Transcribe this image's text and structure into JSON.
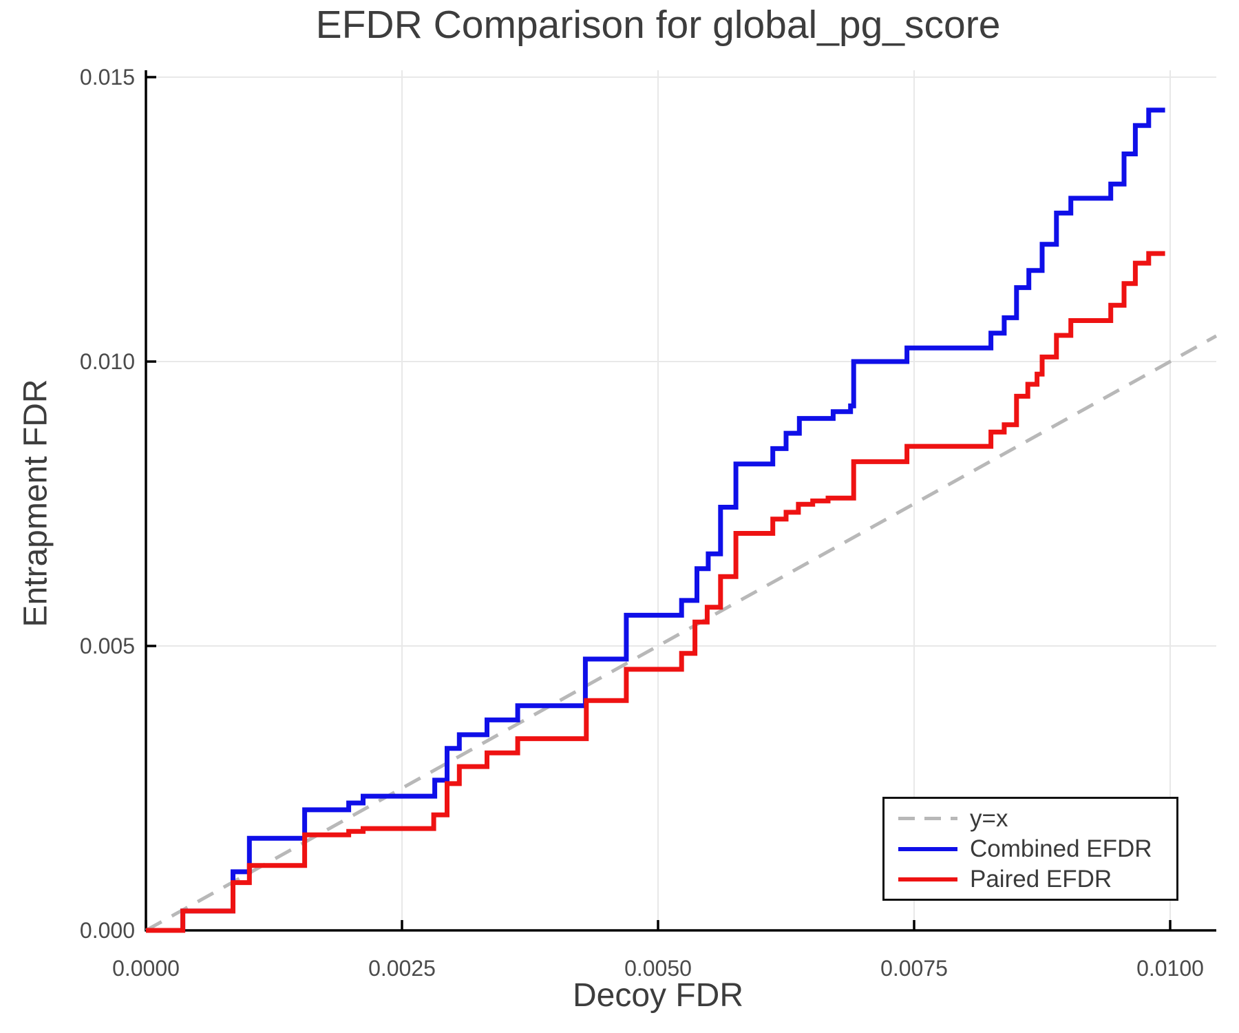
{
  "title": "EFDR Comparison for global_pg_score",
  "axes": {
    "xlabel": "Decoy FDR",
    "ylabel": "Entrapment FDR"
  },
  "legend": {
    "items": [
      {
        "label": "y=x",
        "color": "#b8b8b8",
        "dashed": true
      },
      {
        "label": "Combined EFDR",
        "color": "#0f0fe8",
        "dashed": false
      },
      {
        "label": "Paired EFDR",
        "color": "#ee1212",
        "dashed": false
      }
    ]
  },
  "colors": {
    "combined": "#0f0fe8",
    "paired": "#ee1212",
    "identity": "#b8b8b8",
    "grid": "#e8e8e8",
    "spine": "#000000",
    "tick_text": "#4a4a4a",
    "title_text": "#3d3d3d"
  },
  "chart_data": {
    "type": "line",
    "title": "EFDR Comparison for global_pg_score",
    "xlabel": "Decoy FDR",
    "ylabel": "Entrapment FDR",
    "xlim": [
      0,
      0.01045
    ],
    "ylim": [
      0,
      0.01512
    ],
    "grid": true,
    "legend_position": "lower right",
    "xticks": {
      "values": [
        0,
        0.0025,
        0.005,
        0.0075,
        0.01
      ],
      "labels": [
        "0.0000",
        "0.0025",
        "0.0050",
        "0.0075",
        "0.0100"
      ]
    },
    "yticks": {
      "values": [
        0,
        0.005,
        0.01,
        0.015
      ],
      "labels": [
        "0.000",
        "0.005",
        "0.010",
        "0.015"
      ]
    },
    "reference_line": {
      "name": "y=x",
      "from": [
        0,
        0
      ],
      "to": [
        0.01045,
        0.01045
      ],
      "style": "dashed"
    },
    "series": [
      {
        "name": "Combined EFDR",
        "step": "hv",
        "points": [
          [
            0.0,
            0.0
          ],
          [
            0.00036,
            0.00034
          ],
          [
            0.00085,
            0.00103
          ],
          [
            0.00101,
            0.00162
          ],
          [
            0.00155,
            0.00212
          ],
          [
            0.00198,
            0.00224
          ],
          [
            0.00212,
            0.00236
          ],
          [
            0.00282,
            0.00264
          ],
          [
            0.00294,
            0.0032
          ],
          [
            0.00306,
            0.00344
          ],
          [
            0.00333,
            0.0037
          ],
          [
            0.00363,
            0.00395
          ],
          [
            0.00429,
            0.00477
          ],
          [
            0.00469,
            0.00554
          ],
          [
            0.00523,
            0.0058
          ],
          [
            0.00538,
            0.00636
          ],
          [
            0.00549,
            0.00662
          ],
          [
            0.00561,
            0.00744
          ],
          [
            0.00576,
            0.0082
          ],
          [
            0.00612,
            0.00847
          ],
          [
            0.00625,
            0.00874
          ],
          [
            0.00638,
            0.009
          ],
          [
            0.00671,
            0.00912
          ],
          [
            0.00688,
            0.00922
          ],
          [
            0.00691,
            0.01
          ],
          [
            0.00743,
            0.01024
          ],
          [
            0.00825,
            0.0105
          ],
          [
            0.00838,
            0.01077
          ],
          [
            0.0085,
            0.0113
          ],
          [
            0.00862,
            0.0116
          ],
          [
            0.00875,
            0.01206
          ],
          [
            0.00889,
            0.01261
          ],
          [
            0.00903,
            0.01287
          ],
          [
            0.00942,
            0.01312
          ],
          [
            0.00955,
            0.01365
          ],
          [
            0.00966,
            0.01415
          ],
          [
            0.00979,
            0.01442
          ],
          [
            0.00995,
            0.01442
          ]
        ]
      },
      {
        "name": "Paired EFDR",
        "step": "hv",
        "points": [
          [
            0.0,
            0.0
          ],
          [
            0.00036,
            0.00034
          ],
          [
            0.00085,
            0.00084
          ],
          [
            0.00101,
            0.00114
          ],
          [
            0.00155,
            0.00168
          ],
          [
            0.00198,
            0.00174
          ],
          [
            0.00212,
            0.00179
          ],
          [
            0.00281,
            0.00203
          ],
          [
            0.00294,
            0.00258
          ],
          [
            0.00306,
            0.00288
          ],
          [
            0.00333,
            0.00312
          ],
          [
            0.00363,
            0.00337
          ],
          [
            0.0043,
            0.00404
          ],
          [
            0.00469,
            0.00459
          ],
          [
            0.00523,
            0.00487
          ],
          [
            0.00536,
            0.00542
          ],
          [
            0.00548,
            0.00568
          ],
          [
            0.00561,
            0.00622
          ],
          [
            0.00576,
            0.00698
          ],
          [
            0.00612,
            0.00723
          ],
          [
            0.00625,
            0.00735
          ],
          [
            0.00637,
            0.00749
          ],
          [
            0.00651,
            0.00755
          ],
          [
            0.00666,
            0.0076
          ],
          [
            0.00691,
            0.00824
          ],
          [
            0.00743,
            0.00851
          ],
          [
            0.00825,
            0.00876
          ],
          [
            0.00838,
            0.00889
          ],
          [
            0.0085,
            0.00939
          ],
          [
            0.00861,
            0.0096
          ],
          [
            0.0087,
            0.00978
          ],
          [
            0.00875,
            0.01008
          ],
          [
            0.00889,
            0.01046
          ],
          [
            0.00903,
            0.01072
          ],
          [
            0.00942,
            0.01099
          ],
          [
            0.00955,
            0.01137
          ],
          [
            0.00966,
            0.01173
          ],
          [
            0.00979,
            0.0119
          ],
          [
            0.00995,
            0.0119
          ]
        ]
      }
    ]
  }
}
